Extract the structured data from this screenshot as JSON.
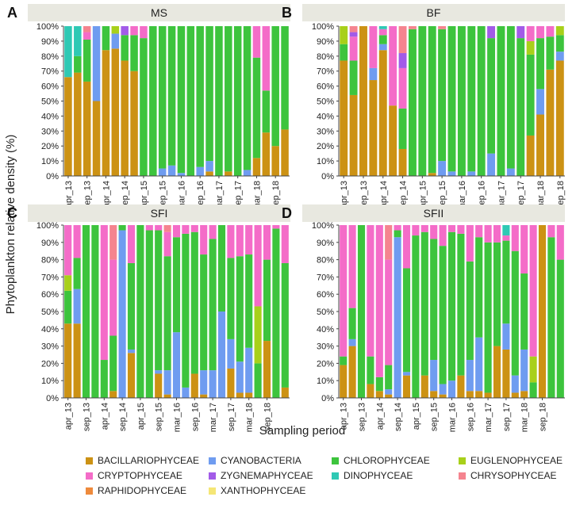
{
  "y_axis_label": "Phytoplankton relative density (%)",
  "x_axis_label": "Sampling period",
  "tick_labels": [
    "0%",
    "10%",
    "20%",
    "30%",
    "40%",
    "50%",
    "60%",
    "70%",
    "80%",
    "90%",
    "100%"
  ],
  "series_colors": {
    "BACILLARIOPHYCEAE": "#CC9214",
    "CYANOBACTERIA": "#6F9CF0",
    "CHLOROPHYCEAE": "#3DC43D",
    "EUGLENOPHYCEAE": "#A8D01A",
    "CRYPTOPHYCEAE": "#F46CC8",
    "ZYGNEMAPHYCEAE": "#A25BE8",
    "DINOPHYCEAE": "#2FC9B4",
    "CHRYSOPHYCEAE": "#F5848F",
    "RAPHIDOPHYCEAE": "#EE8A3C",
    "XANTHOPHYCEAE": "#F5E676"
  },
  "legend": [
    {
      "name": "BACILLARIOPHYCEAE",
      "color": "#CC9214"
    },
    {
      "name": "CYANOBACTERIA",
      "color": "#6F9CF0"
    },
    {
      "name": "CHLOROPHYCEAE",
      "color": "#3DC43D"
    },
    {
      "name": "EUGLENOPHYCEAE",
      "color": "#A8D01A"
    },
    {
      "name": "CRYPTOPHYCEAE",
      "color": "#F46CC8"
    },
    {
      "name": "ZYGNEMAPHYCEAE",
      "color": "#A25BE8"
    },
    {
      "name": "DINOPHYCEAE",
      "color": "#2FC9B4"
    },
    {
      "name": "CHRYSOPHYCEAE",
      "color": "#F5848F"
    },
    {
      "name": "RAPHIDOPHYCEAE",
      "color": "#EE8A3C"
    },
    {
      "name": "XANTHOPHYCEAE",
      "color": "#F5E676"
    }
  ],
  "chart_data": [
    {
      "type": "bar",
      "stacked": true,
      "letter": "A",
      "title": "MS",
      "ylabel": "Phytoplankton relative density (%)",
      "ylim": [
        0,
        100
      ],
      "x_tick_labels": [
        "apr_13",
        "sep_13",
        "apr_14",
        "sep_14",
        "apr_15",
        "sep_15",
        "mar_16",
        "sep_16",
        "mar_17",
        "sep_17",
        "mar_18",
        "sep_18"
      ],
      "bars": [
        {
          "BACILLARIOPHYCEAE": 66,
          "DINOPHYCEAE": 34
        },
        {
          "BACILLARIOPHYCEAE": 69,
          "CHLOROPHYCEAE": 11,
          "DINOPHYCEAE": 20
        },
        {
          "BACILLARIOPHYCEAE": 63,
          "CHLOROPHYCEAE": 28,
          "CRYPTOPHYCEAE": 5,
          "CHRYSOPHYCEAE": 4
        },
        {
          "BACILLARIOPHYCEAE": 50,
          "CYANOBACTERIA": 50
        },
        {
          "BACILLARIOPHYCEAE": 84,
          "CHLOROPHYCEAE": 16
        },
        {
          "BACILLARIOPHYCEAE": 85,
          "CYANOBACTERIA": 10,
          "EUGLENOPHYCEAE": 5
        },
        {
          "BACILLARIOPHYCEAE": 77,
          "CHLOROPHYCEAE": 17,
          "ZYGNEMAPHYCEAE": 6
        },
        {
          "BACILLARIOPHYCEAE": 70,
          "CHLOROPHYCEAE": 24,
          "CRYPTOPHYCEAE": 6
        },
        {
          "CHLOROPHYCEAE": 92,
          "CRYPTOPHYCEAE": 8
        },
        {
          "CHLOROPHYCEAE": 100
        },
        {
          "CYANOBACTERIA": 5,
          "CHLOROPHYCEAE": 95
        },
        {
          "CYANOBACTERIA": 7,
          "CHLOROPHYCEAE": 93
        },
        {
          "CYANOBACTERIA": 2,
          "CHLOROPHYCEAE": 98
        },
        {
          "CHLOROPHYCEAE": 100
        },
        {
          "CYANOBACTERIA": 6,
          "CHLOROPHYCEAE": 94
        },
        {
          "BACILLARIOPHYCEAE": 3,
          "CYANOBACTERIA": 7,
          "CHLOROPHYCEAE": 90
        },
        {
          "CHLOROPHYCEAE": 100
        },
        {
          "BACILLARIOPHYCEAE": 3,
          "CHLOROPHYCEAE": 97
        },
        {
          "CHLOROPHYCEAE": 100
        },
        {
          "CYANOBACTERIA": 4,
          "CHLOROPHYCEAE": 96
        },
        {
          "BACILLARIOPHYCEAE": 12,
          "CHLOROPHYCEAE": 67,
          "CRYPTOPHYCEAE": 21
        },
        {
          "BACILLARIOPHYCEAE": 29,
          "CHLOROPHYCEAE": 28,
          "CRYPTOPHYCEAE": 43
        },
        {
          "BACILLARIOPHYCEAE": 20,
          "CHLOROPHYCEAE": 80
        },
        {
          "BACILLARIOPHYCEAE": 31,
          "CHLOROPHYCEAE": 69
        }
      ]
    },
    {
      "type": "bar",
      "stacked": true,
      "letter": "B",
      "title": "BF",
      "ylabel": "Phytoplankton relative density (%)",
      "ylim": [
        0,
        100
      ],
      "x_tick_labels": [
        "apr_13",
        "sep_13",
        "apr_14",
        "sep_14",
        "apr_15",
        "sep_15",
        "mar_16",
        "sep_16",
        "mar_17",
        "sep_17",
        "mar_18",
        "sep_18"
      ],
      "bars": [
        {
          "BACILLARIOPHYCEAE": 77,
          "CHLOROPHYCEAE": 11,
          "EUGLENOPHYCEAE": 12
        },
        {
          "BACILLARIOPHYCEAE": 54,
          "CHLOROPHYCEAE": 23,
          "CRYPTOPHYCEAE": 16,
          "ZYGNEMAPHYCEAE": 3,
          "CHRYSOPHYCEAE": 4
        },
        {
          "BACILLARIOPHYCEAE": 100
        },
        {
          "BACILLARIOPHYCEAE": 64,
          "CYANOBACTERIA": 8,
          "CRYPTOPHYCEAE": 28
        },
        {
          "BACILLARIOPHYCEAE": 84,
          "CYANOBACTERIA": 4,
          "CHLOROPHYCEAE": 6,
          "DINOPHYCEAE": 2,
          "CRYPTOPHYCEAE": 4
        },
        {
          "BACILLARIOPHYCEAE": 47,
          "CRYPTOPHYCEAE": 53
        },
        {
          "BACILLARIOPHYCEAE": 18,
          "CHLOROPHYCEAE": 27,
          "CRYPTOPHYCEAE": 27,
          "ZYGNEMAPHYCEAE": 10,
          "CHRYSOPHYCEAE": 18
        },
        {
          "CHLOROPHYCEAE": 98,
          "CHRYSOPHYCEAE": 2
        },
        {
          "CHLOROPHYCEAE": 100
        },
        {
          "BACILLARIOPHYCEAE": 2,
          "CHLOROPHYCEAE": 98
        },
        {
          "CYANOBACTERIA": 10,
          "CHLOROPHYCEAE": 88,
          "CHRYSOPHYCEAE": 2
        },
        {
          "CYANOBACTERIA": 3,
          "CHLOROPHYCEAE": 97
        },
        {
          "CHLOROPHYCEAE": 100
        },
        {
          "CYANOBACTERIA": 3,
          "CHLOROPHYCEAE": 97
        },
        {
          "CHLOROPHYCEAE": 100
        },
        {
          "CYANOBACTERIA": 15,
          "CHLOROPHYCEAE": 77,
          "ZYGNEMAPHYCEAE": 8
        },
        {
          "CHLOROPHYCEAE": 100
        },
        {
          "CYANOBACTERIA": 5,
          "CHLOROPHYCEAE": 95
        },
        {
          "CHLOROPHYCEAE": 92,
          "ZYGNEMAPHYCEAE": 8
        },
        {
          "BACILLARIOPHYCEAE": 27,
          "CHLOROPHYCEAE": 54,
          "EUGLENOPHYCEAE": 9,
          "CRYPTOPHYCEAE": 10
        },
        {
          "BACILLARIOPHYCEAE": 41,
          "CYANOBACTERIA": 17,
          "CHLOROPHYCEAE": 34,
          "CRYPTOPHYCEAE": 8
        },
        {
          "BACILLARIOPHYCEAE": 71,
          "CHLOROPHYCEAE": 22,
          "CRYPTOPHYCEAE": 7
        },
        {
          "BACILLARIOPHYCEAE": 77,
          "CYANOBACTERIA": 6,
          "CHLOROPHYCEAE": 11,
          "EUGLENOPHYCEAE": 6
        }
      ]
    },
    {
      "type": "bar",
      "stacked": true,
      "letter": "C",
      "title": "SFI",
      "ylabel": "Phytoplankton relative density (%)",
      "ylim": [
        0,
        100
      ],
      "x_tick_labels": [
        "apr_13",
        "sep_13",
        "apr_14",
        "sep_14",
        "apr_15",
        "sep_15",
        "mar_16",
        "sep_16",
        "mar_17",
        "sep_17",
        "mar_18",
        "sep_18"
      ],
      "bars": [
        {
          "BACILLARIOPHYCEAE": 43,
          "CHLOROPHYCEAE": 19,
          "EUGLENOPHYCEAE": 9,
          "CRYPTOPHYCEAE": 29
        },
        {
          "BACILLARIOPHYCEAE": 43,
          "CYANOBACTERIA": 20,
          "CHLOROPHYCEAE": 18,
          "CRYPTOPHYCEAE": 19
        },
        {
          "CHLOROPHYCEAE": 100
        },
        {
          "CHLOROPHYCEAE": 100
        },
        {
          "CHLOROPHYCEAE": 22,
          "CRYPTOPHYCEAE": 78
        },
        {
          "BACILLARIOPHYCEAE": 4,
          "CHLOROPHYCEAE": 32,
          "CRYPTOPHYCEAE": 44,
          "CHRYSOPHYCEAE": 20
        },
        {
          "CYANOBACTERIA": 97,
          "CHLOROPHYCEAE": 3
        },
        {
          "BACILLARIOPHYCEAE": 26,
          "CYANOBACTERIA": 2,
          "CHLOROPHYCEAE": 50,
          "CRYPTOPHYCEAE": 22
        },
        {
          "CHLOROPHYCEAE": 100
        },
        {
          "CHLOROPHYCEAE": 97,
          "CRYPTOPHYCEAE": 3
        },
        {
          "BACILLARIOPHYCEAE": 14,
          "CYANOBACTERIA": 2,
          "CHLOROPHYCEAE": 81,
          "CRYPTOPHYCEAE": 3
        },
        {
          "BACILLARIOPHYCEAE": 2,
          "CYANOBACTERIA": 14,
          "CHLOROPHYCEAE": 66,
          "CRYPTOPHYCEAE": 14,
          "CHRYSOPHYCEAE": 4
        },
        {
          "CYANOBACTERIA": 38,
          "CHLOROPHYCEAE": 55,
          "CRYPTOPHYCEAE": 7
        },
        {
          "CYANOBACTERIA": 6,
          "CHLOROPHYCEAE": 89,
          "CRYPTOPHYCEAE": 5
        },
        {
          "BACILLARIOPHYCEAE": 14,
          "CHLOROPHYCEAE": 82,
          "CRYPTOPHYCEAE": 4
        },
        {
          "BACILLARIOPHYCEAE": 2,
          "CYANOBACTERIA": 14,
          "CHLOROPHYCEAE": 67,
          "CRYPTOPHYCEAE": 17
        },
        {
          "CYANOBACTERIA": 16,
          "CHLOROPHYCEAE": 76,
          "CRYPTOPHYCEAE": 8
        },
        {
          "CYANOBACTERIA": 50,
          "CHLOROPHYCEAE": 50
        },
        {
          "BACILLARIOPHYCEAE": 17,
          "CYANOBACTERIA": 17,
          "CHLOROPHYCEAE": 47,
          "CRYPTOPHYCEAE": 19
        },
        {
          "BACILLARIOPHYCEAE": 3,
          "CYANOBACTERIA": 18,
          "CHLOROPHYCEAE": 61,
          "CRYPTOPHYCEAE": 18
        },
        {
          "BACILLARIOPHYCEAE": 3,
          "CYANOBACTERIA": 26,
          "CHLOROPHYCEAE": 54,
          "CRYPTOPHYCEAE": 17
        },
        {
          "CHLOROPHYCEAE": 20,
          "EUGLENOPHYCEAE": 33,
          "CRYPTOPHYCEAE": 47
        },
        {
          "BACILLARIOPHYCEAE": 33,
          "CHLOROPHYCEAE": 47,
          "CRYPTOPHYCEAE": 20
        },
        {
          "CHLOROPHYCEAE": 98,
          "CRYPTOPHYCEAE": 2
        },
        {
          "BACILLARIOPHYCEAE": 6,
          "CHLOROPHYCEAE": 72,
          "CRYPTOPHYCEAE": 22
        }
      ]
    },
    {
      "type": "bar",
      "stacked": true,
      "letter": "D",
      "title": "SFII",
      "ylabel": "Phytoplankton relative density (%)",
      "ylim": [
        0,
        100
      ],
      "x_tick_labels": [
        "apr_13",
        "sep_13",
        "apr_14",
        "sep_14",
        "apr_15",
        "sep_15",
        "mar_16",
        "sep_16",
        "mar_17",
        "sep_17",
        "mar_18",
        "sep_18"
      ],
      "bars": [
        {
          "BACILLARIOPHYCEAE": 19,
          "CHLOROPHYCEAE": 5,
          "CRYPTOPHYCEAE": 76
        },
        {
          "BACILLARIOPHYCEAE": 30,
          "CYANOBACTERIA": 4,
          "CHLOROPHYCEAE": 18,
          "CRYPTOPHYCEAE": 48
        },
        {
          "CHLOROPHYCEAE": 100
        },
        {
          "BACILLARIOPHYCEAE": 8,
          "CHLOROPHYCEAE": 16,
          "CRYPTOPHYCEAE": 76
        },
        {
          "BACILLARIOPHYCEAE": 4,
          "CHLOROPHYCEAE": 8,
          "CRYPTOPHYCEAE": 88
        },
        {
          "BACILLARIOPHYCEAE": 2,
          "CYANOBACTERIA": 3,
          "CHLOROPHYCEAE": 14,
          "CRYPTOPHYCEAE": 61,
          "CHRYSOPHYCEAE": 20
        },
        {
          "CYANOBACTERIA": 93,
          "CHLOROPHYCEAE": 4,
          "CRYPTOPHYCEAE": 3
        },
        {
          "BACILLARIOPHYCEAE": 13,
          "CYANOBACTERIA": 2,
          "CHLOROPHYCEAE": 60,
          "CRYPTOPHYCEAE": 25
        },
        {
          "CHLOROPHYCEAE": 94,
          "CRYPTOPHYCEAE": 6
        },
        {
          "BACILLARIOPHYCEAE": 13,
          "CHLOROPHYCEAE": 83,
          "CRYPTOPHYCEAE": 4
        },
        {
          "BACILLARIOPHYCEAE": 4,
          "CYANOBACTERIA": 18,
          "CHLOROPHYCEAE": 70,
          "CRYPTOPHYCEAE": 8
        },
        {
          "BACILLARIOPHYCEAE": 2,
          "CYANOBACTERIA": 6,
          "CHLOROPHYCEAE": 80,
          "CRYPTOPHYCEAE": 12
        },
        {
          "CYANOBACTERIA": 10,
          "CHLOROPHYCEAE": 86,
          "CRYPTOPHYCEAE": 4
        },
        {
          "BACILLARIOPHYCEAE": 13,
          "CHLOROPHYCEAE": 82,
          "CRYPTOPHYCEAE": 5
        },
        {
          "BACILLARIOPHYCEAE": 4,
          "CYANOBACTERIA": 18,
          "CHLOROPHYCEAE": 57,
          "CRYPTOPHYCEAE": 21
        },
        {
          "BACILLARIOPHYCEAE": 4,
          "CYANOBACTERIA": 31,
          "CHLOROPHYCEAE": 58,
          "CRYPTOPHYCEAE": 7
        },
        {
          "BACILLARIOPHYCEAE": 3,
          "CHLOROPHYCEAE": 87,
          "CRYPTOPHYCEAE": 10
        },
        {
          "BACILLARIOPHYCEAE": 30,
          "CHLOROPHYCEAE": 60,
          "CRYPTOPHYCEAE": 10
        },
        {
          "BACILLARIOPHYCEAE": 28,
          "CYANOBACTERIA": 15,
          "CHLOROPHYCEAE": 48,
          "DINOPHYCEAE": 6,
          "CRYPTOPHYCEAE": 3
        },
        {
          "BACILLARIOPHYCEAE": 3,
          "CYANOBACTERIA": 10,
          "CHLOROPHYCEAE": 72,
          "CRYPTOPHYCEAE": 15
        },
        {
          "BACILLARIOPHYCEAE": 4,
          "CYANOBACTERIA": 24,
          "CHLOROPHYCEAE": 44,
          "CRYPTOPHYCEAE": 28
        },
        {
          "CHLOROPHYCEAE": 9,
          "EUGLENOPHYCEAE": 15,
          "CRYPTOPHYCEAE": 76
        },
        {
          "BACILLARIOPHYCEAE": 100
        },
        {
          "CHLOROPHYCEAE": 93,
          "CRYPTOPHYCEAE": 7
        },
        {
          "CHLOROPHYCEAE": 80,
          "CRYPTOPHYCEAE": 20
        }
      ]
    }
  ]
}
